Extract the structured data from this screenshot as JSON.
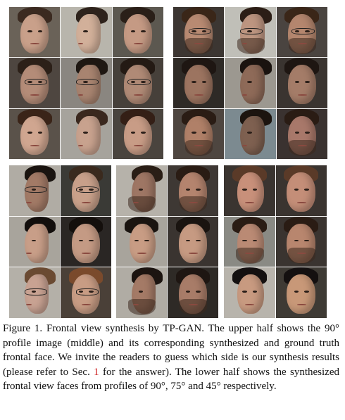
{
  "figure": {
    "caption_parts": [
      {
        "text": "Figure 1. Frontal view synthesis by TP-GAN. The upper half shows the 90° profile image (middle) and its corresponding synthesized and ground truth frontal face. We invite the readers to guess which side is our synthesis results (please refer to Sec. ",
        "style": "normal"
      },
      {
        "text": "1",
        "style": "ref"
      },
      {
        "text": " for the answer). The lower half shows the synthesized frontal view faces from profiles of 90°, 75° and 45° respectively.",
        "style": "normal"
      }
    ]
  },
  "colors": {
    "text": "#111111",
    "reference_link": "#cc2222",
    "background": "#ffffff"
  },
  "grids": {
    "top_left": [
      {
        "pose": "frontal",
        "skin": "#c9a08a",
        "hair": "#3b2a20",
        "bg": "#6a6258",
        "glasses": false,
        "beard": false
      },
      {
        "pose": "profile",
        "skin": "#d2b09a",
        "hair": "#2e231c",
        "bg": "#b8b5ac",
        "glasses": false,
        "beard": false
      },
      {
        "pose": "frontal",
        "skin": "#c59a84",
        "hair": "#2a1f18",
        "bg": "#5c5850",
        "glasses": false,
        "beard": false
      },
      {
        "pose": "frontal",
        "skin": "#b48c78",
        "hair": "#2c2018",
        "bg": "#4e4640",
        "glasses": true,
        "beard": false
      },
      {
        "pose": "profile",
        "skin": "#a88470",
        "hair": "#1e1712",
        "bg": "#8a8680",
        "glasses": true,
        "beard": false
      },
      {
        "pose": "frontal",
        "skin": "#b08a76",
        "hair": "#241a14",
        "bg": "#46403a",
        "glasses": true,
        "beard": false
      },
      {
        "pose": "frontal",
        "skin": "#d0a690",
        "hair": "#3a2418",
        "bg": "#5a524a",
        "glasses": false,
        "beard": false
      },
      {
        "pose": "profile",
        "skin": "#c8a28e",
        "hair": "#3a281e",
        "bg": "#a6a39c",
        "glasses": false,
        "beard": false
      },
      {
        "pose": "frontal",
        "skin": "#c89c86",
        "hair": "#341f16",
        "bg": "#4a443e",
        "glasses": false,
        "beard": false
      }
    ],
    "top_right": [
      {
        "pose": "frontal",
        "skin": "#b88a72",
        "hair": "#3a2618",
        "bg": "#3c3632",
        "glasses": true,
        "beard": true
      },
      {
        "pose": "profile",
        "skin": "#bd9580",
        "hair": "#2c1e16",
        "bg": "#c0bfb8",
        "glasses": true,
        "beard": true
      },
      {
        "pose": "frontal",
        "skin": "#b4866e",
        "hair": "#3a2618",
        "bg": "#4a4440",
        "glasses": true,
        "beard": true
      },
      {
        "pose": "frontal",
        "skin": "#9c7460",
        "hair": "#1e1612",
        "bg": "#2e2a26",
        "glasses": false,
        "beard": false
      },
      {
        "pose": "profile",
        "skin": "#8e6a58",
        "hair": "#1a130f",
        "bg": "#9c9890",
        "glasses": false,
        "beard": false
      },
      {
        "pose": "frontal",
        "skin": "#a47c68",
        "hair": "#1e1612",
        "bg": "#3a3430",
        "glasses": false,
        "beard": false
      },
      {
        "pose": "frontal",
        "skin": "#b08068",
        "hair": "#2a1c14",
        "bg": "#4e4640",
        "glasses": false,
        "beard": true
      },
      {
        "pose": "profile",
        "skin": "#7e6050",
        "hair": "#1c140f",
        "bg": "#7c8a90",
        "glasses": false,
        "beard": false
      },
      {
        "pose": "frontal",
        "skin": "#a8786a",
        "hair": "#2a1c14",
        "bg": "#3a3230",
        "glasses": false,
        "beard": true
      }
    ],
    "bottom_left": [
      {
        "pose": "profile",
        "skin": "#a27a66",
        "hair": "#1a1410",
        "bg": "#b0aca4",
        "glasses": true,
        "beard": false
      },
      {
        "pose": "frontal",
        "skin": "#c8a08a",
        "hair": "#3a2a1e",
        "bg": "#3a3a36",
        "glasses": true,
        "beard": false
      },
      {
        "pose": "profile",
        "skin": "#c89e88",
        "hair": "#120e0c",
        "bg": "#a8a49c",
        "glasses": false,
        "beard": false
      },
      {
        "pose": "frontal",
        "skin": "#c49a84",
        "hair": "#140f0c",
        "bg": "#2a2624",
        "glasses": false,
        "beard": false
      },
      {
        "pose": "profile",
        "skin": "#c8a292",
        "hair": "#6a4a32",
        "bg": "#b4b0a8",
        "glasses": true,
        "beard": false
      },
      {
        "pose": "frontal",
        "skin": "#c89c84",
        "hair": "#7a4a2c",
        "bg": "#4a4038",
        "glasses": true,
        "beard": false
      }
    ],
    "bottom_mid": [
      {
        "pose": "profile",
        "skin": "#9e7664",
        "hair": "#2a1e16",
        "bg": "#b6b2aa",
        "glasses": false,
        "beard": true
      },
      {
        "pose": "frontal",
        "skin": "#b4846e",
        "hair": "#2a1c14",
        "bg": "#3e3834",
        "glasses": false,
        "beard": true
      },
      {
        "pose": "half",
        "skin": "#c89c84",
        "hair": "#1a1410",
        "bg": "#a8a49c",
        "glasses": false,
        "beard": false
      },
      {
        "pose": "frontal",
        "skin": "#c69a82",
        "hair": "#1a1410",
        "bg": "#3a3430",
        "glasses": false,
        "beard": false
      },
      {
        "pose": "profile",
        "skin": "#a47a66",
        "hair": "#1c1410",
        "bg": "#b0aca4",
        "glasses": false,
        "beard": true
      },
      {
        "pose": "frontal",
        "skin": "#a87c68",
        "hair": "#1e1612",
        "bg": "#2e2a26",
        "glasses": false,
        "beard": true
      }
    ],
    "bottom_right": [
      {
        "pose": "half",
        "skin": "#c8907a",
        "hair": "#5a3a28",
        "bg": "#3a3430",
        "glasses": false,
        "beard": false
      },
      {
        "pose": "frontal",
        "skin": "#c48e78",
        "hair": "#5a3a28",
        "bg": "#3a3430",
        "glasses": false,
        "beard": false
      },
      {
        "pose": "half",
        "skin": "#ba8a74",
        "hair": "#2a1c14",
        "bg": "#8a8a84",
        "glasses": false,
        "beard": true
      },
      {
        "pose": "frontal",
        "skin": "#b8866e",
        "hair": "#2a1c14",
        "bg": "#3a3430",
        "glasses": false,
        "beard": true
      },
      {
        "pose": "half",
        "skin": "#c89a80",
        "hair": "#141010",
        "bg": "#b8b4ac",
        "glasses": false,
        "beard": false
      },
      {
        "pose": "frontal",
        "skin": "#c89878",
        "hair": "#141010",
        "bg": "#3e3a34",
        "glasses": false,
        "beard": false
      }
    ]
  }
}
